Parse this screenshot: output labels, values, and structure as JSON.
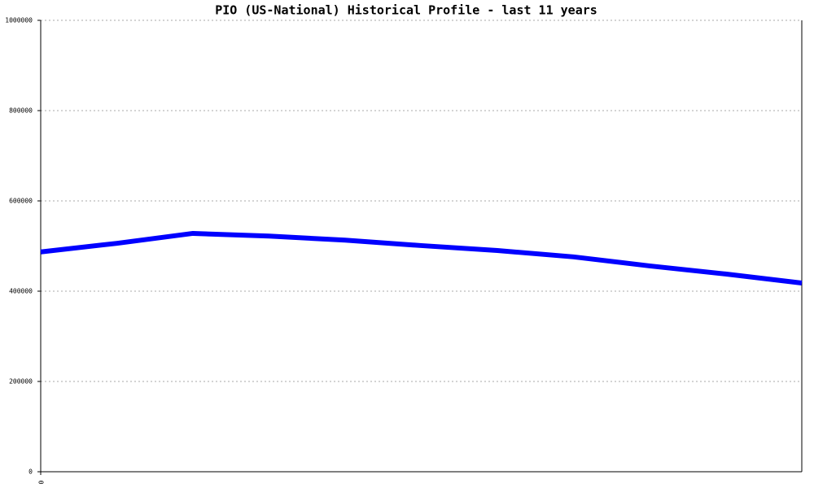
{
  "chart_data": {
    "type": "line",
    "title": "PIO (US-National) Historical Profile - last 11 years",
    "x": [
      0,
      1,
      2,
      3,
      4,
      5,
      6,
      7,
      8,
      9,
      10
    ],
    "series": [
      {
        "name": "PIO",
        "color": "#0000ff",
        "values": [
          487000,
          506000,
          528000,
          522000,
          513000,
          501000,
          490000,
          476000,
          456000,
          438000,
          418000
        ]
      }
    ],
    "xlim": [
      0,
      10
    ],
    "xticks": [
      0
    ],
    "ylim": [
      0,
      1000000
    ],
    "yticks": [
      0,
      200000,
      400000,
      600000,
      800000,
      1000000
    ],
    "grid": true
  }
}
